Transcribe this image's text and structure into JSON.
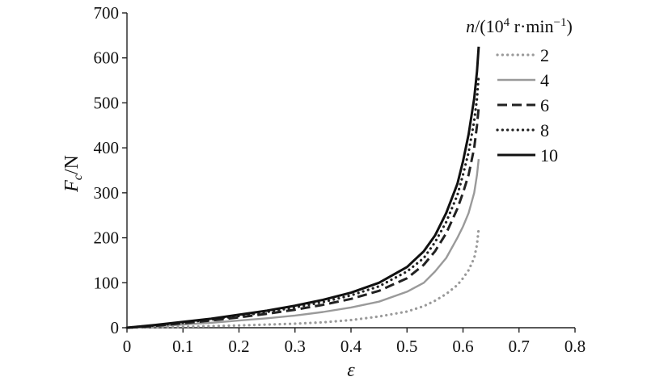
{
  "chart_data": {
    "type": "line",
    "xlabel": "ε",
    "ylabel": {
      "main": "F",
      "sub": "c",
      "unit": "/N"
    },
    "xlim": [
      0,
      0.8
    ],
    "ylim": [
      0,
      700
    ],
    "x_ticks": [
      "0",
      "0.1",
      "0.2",
      "0.3",
      "0.4",
      "0.5",
      "0.6",
      "0.7",
      "0.8"
    ],
    "y_ticks": [
      "0",
      "100",
      "200",
      "300",
      "400",
      "500",
      "600",
      "700"
    ],
    "grid": false,
    "legend_position": "top-right",
    "legend_title": {
      "var": "n",
      "text": "/(10",
      "sup1": "4",
      "unit": " r·min",
      "sup2": "−1",
      "close": ")"
    },
    "series": [
      {
        "name": "2",
        "style": "dotted",
        "color": "#9a9a9a",
        "points": [
          [
            0,
            0
          ],
          [
            0.05,
            1
          ],
          [
            0.1,
            2
          ],
          [
            0.15,
            3.5
          ],
          [
            0.2,
            5
          ],
          [
            0.25,
            7
          ],
          [
            0.3,
            9
          ],
          [
            0.35,
            12
          ],
          [
            0.4,
            17
          ],
          [
            0.45,
            25
          ],
          [
            0.5,
            36
          ],
          [
            0.53,
            48
          ],
          [
            0.55,
            60
          ],
          [
            0.57,
            75
          ],
          [
            0.59,
            95
          ],
          [
            0.6,
            110
          ],
          [
            0.61,
            128
          ],
          [
            0.62,
            155
          ],
          [
            0.625,
            185
          ],
          [
            0.628,
            220
          ]
        ]
      },
      {
        "name": "4",
        "style": "solid",
        "color": "#9a9a9a",
        "points": [
          [
            0,
            0
          ],
          [
            0.05,
            3
          ],
          [
            0.1,
            7
          ],
          [
            0.15,
            11
          ],
          [
            0.2,
            16
          ],
          [
            0.25,
            21
          ],
          [
            0.3,
            27
          ],
          [
            0.35,
            35
          ],
          [
            0.4,
            45
          ],
          [
            0.45,
            58
          ],
          [
            0.5,
            80
          ],
          [
            0.53,
            100
          ],
          [
            0.55,
            125
          ],
          [
            0.57,
            155
          ],
          [
            0.59,
            200
          ],
          [
            0.6,
            225
          ],
          [
            0.61,
            255
          ],
          [
            0.62,
            300
          ],
          [
            0.625,
            340
          ],
          [
            0.628,
            375
          ]
        ]
      },
      {
        "name": "6",
        "style": "dashed",
        "color": "#222222",
        "points": [
          [
            0,
            0
          ],
          [
            0.05,
            4
          ],
          [
            0.1,
            10
          ],
          [
            0.15,
            16
          ],
          [
            0.2,
            23
          ],
          [
            0.25,
            31
          ],
          [
            0.3,
            40
          ],
          [
            0.35,
            51
          ],
          [
            0.4,
            64
          ],
          [
            0.45,
            82
          ],
          [
            0.5,
            110
          ],
          [
            0.53,
            140
          ],
          [
            0.55,
            170
          ],
          [
            0.57,
            210
          ],
          [
            0.59,
            265
          ],
          [
            0.6,
            300
          ],
          [
            0.61,
            340
          ],
          [
            0.62,
            400
          ],
          [
            0.625,
            450
          ],
          [
            0.628,
            490
          ]
        ]
      },
      {
        "name": "8",
        "style": "dotted",
        "color": "#222222",
        "points": [
          [
            0,
            0
          ],
          [
            0.05,
            5
          ],
          [
            0.1,
            11
          ],
          [
            0.15,
            18
          ],
          [
            0.2,
            26
          ],
          [
            0.25,
            35
          ],
          [
            0.3,
            45
          ],
          [
            0.35,
            57
          ],
          [
            0.4,
            72
          ],
          [
            0.45,
            92
          ],
          [
            0.5,
            125
          ],
          [
            0.53,
            155
          ],
          [
            0.55,
            190
          ],
          [
            0.57,
            235
          ],
          [
            0.59,
            295
          ],
          [
            0.6,
            340
          ],
          [
            0.61,
            390
          ],
          [
            0.62,
            460
          ],
          [
            0.625,
            510
          ],
          [
            0.628,
            560
          ]
        ]
      },
      {
        "name": "10",
        "style": "solid",
        "color": "#111111",
        "points": [
          [
            0,
            0
          ],
          [
            0.05,
            6
          ],
          [
            0.1,
            13
          ],
          [
            0.15,
            20
          ],
          [
            0.2,
            29
          ],
          [
            0.25,
            38
          ],
          [
            0.3,
            49
          ],
          [
            0.35,
            62
          ],
          [
            0.4,
            78
          ],
          [
            0.45,
            100
          ],
          [
            0.5,
            135
          ],
          [
            0.53,
            170
          ],
          [
            0.55,
            205
          ],
          [
            0.57,
            255
          ],
          [
            0.59,
            320
          ],
          [
            0.6,
            370
          ],
          [
            0.61,
            430
          ],
          [
            0.62,
            510
          ],
          [
            0.625,
            570
          ],
          [
            0.628,
            625
          ]
        ]
      }
    ]
  }
}
